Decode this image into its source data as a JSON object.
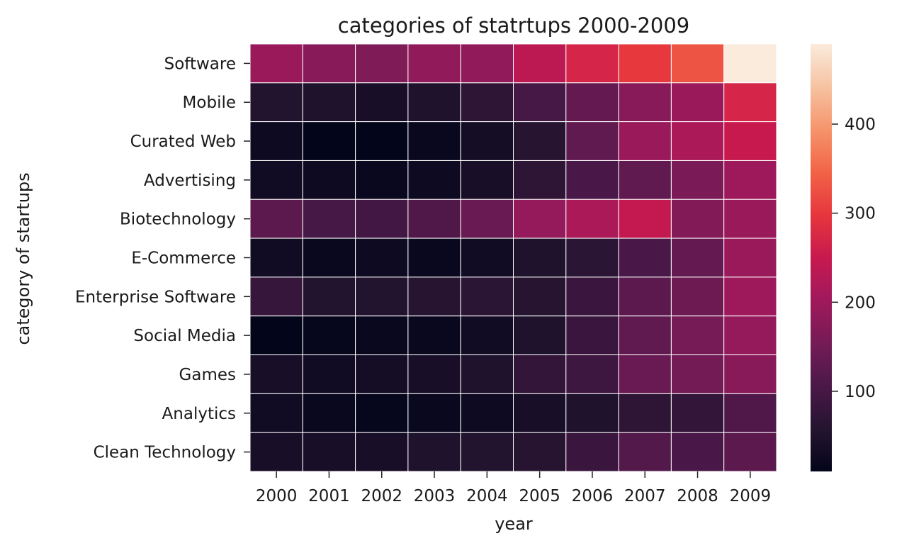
{
  "chart_data": {
    "type": "heatmap",
    "title": "categories of statrtups 2000-2009",
    "xlabel": "year",
    "ylabel": "category of startups",
    "x": [
      "2000",
      "2001",
      "2002",
      "2003",
      "2004",
      "2005",
      "2006",
      "2007",
      "2008",
      "2009"
    ],
    "y": [
      "Software",
      "Mobile",
      "Curated Web",
      "Advertising",
      "Biotechnology",
      "E-Commerce",
      "Enterprise Software",
      "Social Media",
      "Games",
      "Analytics",
      "Clean Technology"
    ],
    "values": [
      [
        195,
        175,
        165,
        185,
        185,
        235,
        270,
        300,
        330,
        490
      ],
      [
        55,
        50,
        40,
        50,
        70,
        100,
        135,
        175,
        195,
        270
      ],
      [
        25,
        10,
        10,
        20,
        35,
        60,
        130,
        195,
        215,
        250
      ],
      [
        30,
        25,
        20,
        25,
        40,
        70,
        105,
        130,
        160,
        200
      ],
      [
        125,
        100,
        95,
        110,
        140,
        190,
        215,
        245,
        170,
        195
      ],
      [
        30,
        20,
        25,
        20,
        30,
        50,
        65,
        105,
        135,
        195
      ],
      [
        80,
        55,
        55,
        60,
        65,
        60,
        85,
        125,
        145,
        200
      ],
      [
        10,
        15,
        20,
        20,
        30,
        50,
        85,
        130,
        155,
        190
      ],
      [
        40,
        30,
        35,
        40,
        50,
        75,
        90,
        140,
        150,
        175
      ],
      [
        30,
        20,
        15,
        20,
        25,
        40,
        50,
        70,
        75,
        110
      ],
      [
        40,
        40,
        40,
        50,
        55,
        60,
        85,
        115,
        105,
        125
      ]
    ],
    "vmin": 10,
    "vmax": 490,
    "colormap": "rocket",
    "colorbar_ticks": [
      100,
      200,
      300,
      400
    ],
    "grid": false,
    "cell_border_color": "#ffffff"
  }
}
